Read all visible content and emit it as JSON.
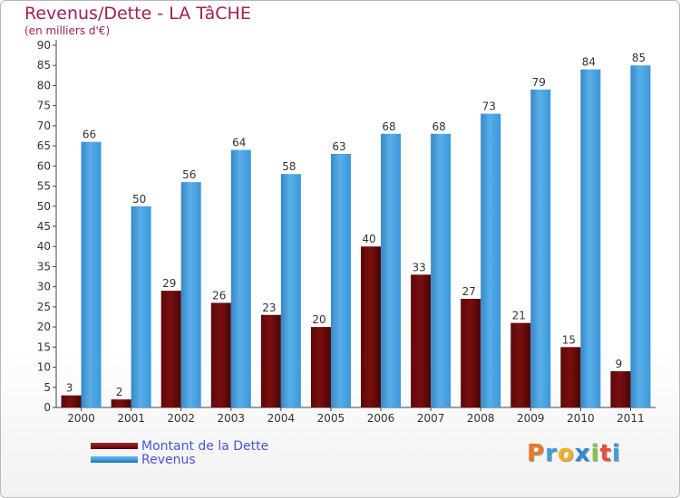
{
  "title": "Revenus/Dette - LA TâCHE",
  "subtitle": "(en milliers d'€)",
  "colors": {
    "debt": "#7a0f0f",
    "revenue": "#3a97dc",
    "title": "#a0204f",
    "legend_text": "#4a57d6"
  },
  "legend": [
    {
      "label": "Montant de la Dette",
      "color": "#7a0f0f"
    },
    {
      "label": "Revenus",
      "color": "#3a97dc"
    }
  ],
  "logo": {
    "text": "Proxiti",
    "letter_colors": [
      "#e8782a",
      "#3aa0e0",
      "#f2b01e",
      "#2f8ad6",
      "#8ac340",
      "#e84d3c",
      "#3aa0e0"
    ]
  },
  "chart_data": {
    "type": "bar",
    "title": "Revenus/Dette - LA TâCHE",
    "subtitle": "(en milliers d'€)",
    "categories": [
      "2000",
      "2001",
      "2002",
      "2003",
      "2004",
      "2005",
      "2006",
      "2007",
      "2008",
      "2009",
      "2010",
      "2011"
    ],
    "series": [
      {
        "name": "Montant de la Dette",
        "color": "#7a0f0f",
        "values": [
          3,
          2,
          29,
          26,
          23,
          20,
          40,
          33,
          27,
          21,
          15,
          9
        ]
      },
      {
        "name": "Revenus",
        "color": "#3a97dc",
        "values": [
          66,
          50,
          56,
          64,
          58,
          63,
          68,
          68,
          73,
          79,
          84,
          85
        ]
      }
    ],
    "ylim": [
      0,
      90
    ],
    "yticks": [
      0,
      5,
      10,
      15,
      20,
      25,
      30,
      35,
      40,
      45,
      50,
      55,
      60,
      65,
      70,
      75,
      80,
      85,
      90
    ],
    "grid": false,
    "legend_position": "bottom-left"
  }
}
